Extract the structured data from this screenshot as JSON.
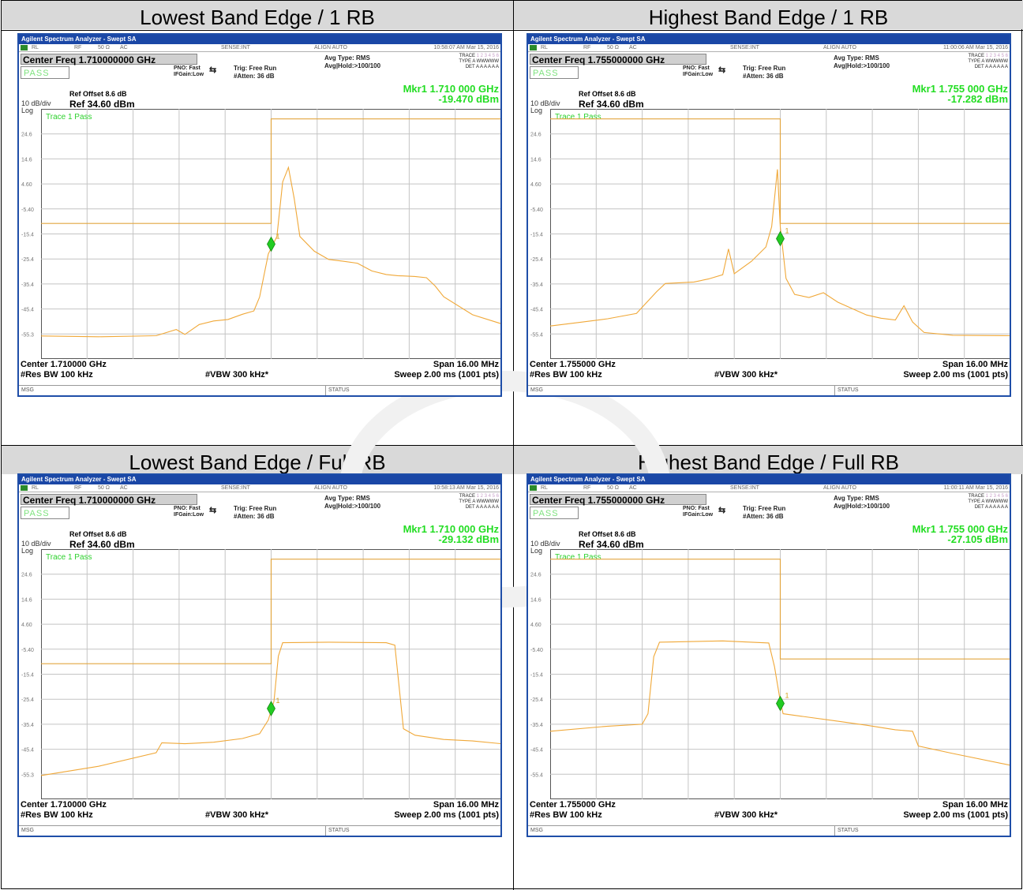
{
  "header_labels": [
    "Lowest Band Edge / 1 RB",
    "Highest Band Edge / 1 RB",
    "Lowest Band Edge / Full RB",
    "Highest Band Edge / Full RB"
  ],
  "common": {
    "app_title": "Agilent Spectrum Analyzer - Swept SA",
    "rl": "RL",
    "rf": "RF",
    "imp": "50 Ω",
    "ac": "AC",
    "sense": "SENSE:INT",
    "align": "ALIGN AUTO",
    "pass": "PASS",
    "pno": "PNO: Fast",
    "ifgain": "IFGain:Low",
    "trig": "Trig: Free Run",
    "atten": "#Atten: 36 dB",
    "avg_type": "Avg Type: RMS",
    "avg_hold": "Avg|Hold:>100/100",
    "trace_lbl": "TRACE",
    "trace_val": "1 2 3 4 5 6",
    "type_lbl": "TYPE",
    "type_val": "A WWWWW",
    "det_lbl": "DET",
    "det_val": "A A A A A A",
    "ref_offset": "Ref Offset 8.6 dB",
    "ref_level": "Ref 34.60 dBm",
    "div": "10 dB/div",
    "log": "Log",
    "trace_pass": "Trace 1 Pass",
    "res_bw": "#Res BW 100 kHz",
    "vbw": "#VBW 300 kHz*",
    "span": "Span 16.00 MHz",
    "sweep": "Sweep  2.00 ms (1001 pts)",
    "msg": "MSG",
    "status": "STATUS",
    "marker_id": "1"
  },
  "panels": [
    {
      "time": "10:58:07 AM Mar 15, 2016",
      "center_freq": "Center Freq 1.710000000 GHz",
      "mkr_freq": "Mkr1 1.710 000 GHz",
      "mkr_level": "-19.470 dBm",
      "center_bottom": "Center 1.710000 GHz",
      "y_ticks": [
        "24.6",
        "14.6",
        "4.60",
        "-5.40",
        "-15.4",
        "-25.4",
        "-35.4",
        "-45.4",
        "-55.3"
      ],
      "chart_data": {
        "type": "line",
        "x_range_mhz": [
          -8,
          8
        ],
        "y_range_dbm": [
          -65.4,
          34.6
        ],
        "limit_line": [
          {
            "x": -8,
            "y": -11.2
          },
          {
            "x": 0,
            "y": -11.2
          },
          {
            "x": 0,
            "y": 30.6
          },
          {
            "x": 8,
            "y": 30.6
          }
        ],
        "marker": {
          "x": 0,
          "y": -19.47
        },
        "trace": [
          [
            -8,
            -56.2
          ],
          [
            -6,
            -56.5
          ],
          [
            -4,
            -56.1
          ],
          [
            -3.3,
            -53.6
          ],
          [
            -3,
            -55.6
          ],
          [
            -2.5,
            -51.6
          ],
          [
            -2,
            -50.2
          ],
          [
            -1.5,
            -49.6
          ],
          [
            -1,
            -47.5
          ],
          [
            -0.6,
            -46.2
          ],
          [
            -0.4,
            -40.6
          ],
          [
            -0.1,
            -23.4
          ],
          [
            0.2,
            -16.4
          ],
          [
            0.4,
            5.4
          ],
          [
            0.6,
            11.2
          ],
          [
            0.8,
            -1.2
          ],
          [
            1,
            -16.4
          ],
          [
            1.5,
            -22.3
          ],
          [
            2,
            -25.6
          ],
          [
            2.5,
            -26.3
          ],
          [
            3,
            -27.1
          ],
          [
            3.5,
            -30.2
          ],
          [
            4,
            -31.6
          ],
          [
            4.4,
            -32.1
          ],
          [
            5,
            -32.4
          ],
          [
            5.4,
            -32.9
          ],
          [
            5.7,
            -36.2
          ],
          [
            6,
            -40.5
          ],
          [
            7,
            -47.7
          ],
          [
            8,
            -51.3
          ]
        ]
      }
    },
    {
      "time": "11:00:06 AM Mar 15, 2016",
      "center_freq": "Center Freq 1.755000000 GHz",
      "mkr_freq": "Mkr1 1.755 000 GHz",
      "mkr_level": "-17.282 dBm",
      "center_bottom": "Center 1.755000 GHz",
      "y_ticks": [
        "24.6",
        "14.6",
        "4.60",
        "-5.40",
        "-15.4",
        "-25.4",
        "-35.4",
        "-45.4",
        "-55.4"
      ],
      "chart_data": {
        "type": "line",
        "x_range_mhz": [
          -8,
          8
        ],
        "y_range_dbm": [
          -65.4,
          34.6
        ],
        "limit_line": [
          {
            "x": -8,
            "y": 30.6
          },
          {
            "x": 0,
            "y": 30.6
          },
          {
            "x": 0,
            "y": -11.2
          },
          {
            "x": 8,
            "y": -11.2
          }
        ],
        "marker": {
          "x": 0,
          "y": -17.28
        },
        "trace": [
          [
            -8,
            -52.2
          ],
          [
            -7,
            -50.8
          ],
          [
            -6,
            -49.3
          ],
          [
            -5,
            -47.2
          ],
          [
            -4.3,
            -38.5
          ],
          [
            -4,
            -35.2
          ],
          [
            -3,
            -34.6
          ],
          [
            -2.5,
            -33.4
          ],
          [
            -2,
            -31.7
          ],
          [
            -1.8,
            -21.4
          ],
          [
            -1.6,
            -31.3
          ],
          [
            -1,
            -26.3
          ],
          [
            -0.5,
            -20.6
          ],
          [
            -0.3,
            -12.5
          ],
          [
            -0.1,
            10.4
          ],
          [
            0,
            -12.5
          ],
          [
            0.2,
            -33.2
          ],
          [
            0.5,
            -39.6
          ],
          [
            1,
            -40.8
          ],
          [
            1.5,
            -38.9
          ],
          [
            2,
            -42.7
          ],
          [
            3,
            -47.8
          ],
          [
            3.5,
            -49.1
          ],
          [
            4,
            -49.8
          ],
          [
            4.3,
            -44.1
          ],
          [
            4.6,
            -50.6
          ],
          [
            5,
            -54.8
          ],
          [
            6,
            -55.9
          ],
          [
            8,
            -56.1
          ]
        ]
      }
    },
    {
      "time": "10:58:13 AM Mar 15, 2016",
      "center_freq": "Center Freq 1.710000000 GHz",
      "mkr_freq": "Mkr1 1.710 000 GHz",
      "mkr_level": "-29.132 dBm",
      "center_bottom": "Center 1.710000 GHz",
      "y_ticks": [
        "24.6",
        "14.6",
        "4.60",
        "-5.40",
        "-15.4",
        "-25.4",
        "-35.4",
        "-45.4",
        "-55.3"
      ],
      "chart_data": {
        "type": "line",
        "x_range_mhz": [
          -8,
          8
        ],
        "y_range_dbm": [
          -65.4,
          34.6
        ],
        "limit_line": [
          {
            "x": -8,
            "y": -11.2
          },
          {
            "x": 0,
            "y": -11.2
          },
          {
            "x": 0,
            "y": 30.6
          },
          {
            "x": 8,
            "y": 30.6
          }
        ],
        "marker": {
          "x": 0,
          "y": -29.13
        },
        "trace": [
          [
            -8,
            -55.9
          ],
          [
            -6,
            -52.2
          ],
          [
            -4,
            -46.8
          ],
          [
            -3.8,
            -42.8
          ],
          [
            -3,
            -43.2
          ],
          [
            -2,
            -42.6
          ],
          [
            -1,
            -41.1
          ],
          [
            -0.4,
            -39.2
          ],
          [
            -0.1,
            -33.7
          ],
          [
            0.1,
            -26.2
          ],
          [
            0.25,
            -8.2
          ],
          [
            0.4,
            -2.8
          ],
          [
            2,
            -2.6
          ],
          [
            4,
            -2.8
          ],
          [
            4.3,
            -3.8
          ],
          [
            4.6,
            -37.2
          ],
          [
            5,
            -39.8
          ],
          [
            6,
            -41.5
          ],
          [
            7,
            -42.1
          ],
          [
            8,
            -43.2
          ]
        ]
      }
    },
    {
      "time": "11:00:11 AM Mar 15, 2016",
      "center_freq": "Center Freq 1.755000000 GHz",
      "mkr_freq": "Mkr1 1.755 000 GHz",
      "mkr_level": "-27.105 dBm",
      "center_bottom": "Center 1.755000 GHz",
      "y_ticks": [
        "24.6",
        "14.6",
        "4.60",
        "-5.40",
        "-15.4",
        "-25.4",
        "-35.4",
        "-45.4",
        "-55.4"
      ],
      "chart_data": {
        "type": "line",
        "x_range_mhz": [
          -8,
          8
        ],
        "y_range_dbm": [
          -65.4,
          34.6
        ],
        "limit_line": [
          {
            "x": -8,
            "y": 30.6
          },
          {
            "x": 0,
            "y": 30.6
          },
          {
            "x": 0,
            "y": -9.3
          },
          {
            "x": 8,
            "y": -9.3
          }
        ],
        "marker": {
          "x": 0,
          "y": -27.1
        },
        "trace": [
          [
            -8,
            -38.2
          ],
          [
            -6,
            -36.2
          ],
          [
            -4.8,
            -35.4
          ],
          [
            -4.6,
            -31.2
          ],
          [
            -4.4,
            -8.4
          ],
          [
            -4.2,
            -2.6
          ],
          [
            -2,
            -2.1
          ],
          [
            -0.4,
            -2.9
          ],
          [
            -0.2,
            -12.4
          ],
          [
            0,
            -26.2
          ],
          [
            0.1,
            -31.2
          ],
          [
            2,
            -34.2
          ],
          [
            3,
            -35.8
          ],
          [
            4,
            -37.6
          ],
          [
            4.6,
            -38.2
          ],
          [
            4.8,
            -44.1
          ],
          [
            6,
            -47.1
          ],
          [
            8,
            -51.8
          ]
        ]
      }
    }
  ]
}
